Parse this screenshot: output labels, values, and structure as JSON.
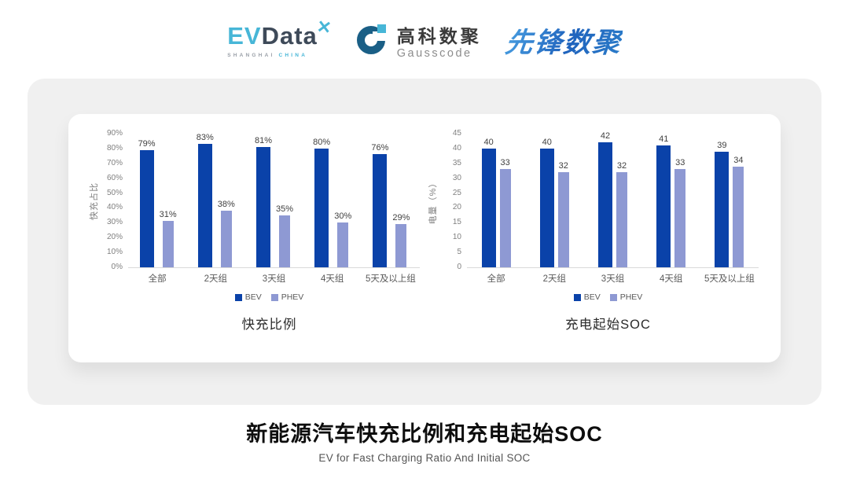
{
  "page": {
    "title": "新能源汽车快充比例和充电起始SOC",
    "subtitle": "EV for Fast Charging Ratio And Initial SOC"
  },
  "logos": {
    "evdata": {
      "ev": "EV",
      "data": "Data",
      "mark": "✕",
      "sub_left": "SHANGHAI",
      "sub_right": "CHINA"
    },
    "gausscode": {
      "cn": "高科数聚",
      "en": "Gausscode"
    },
    "xianfeng": {
      "text": "先锋数聚"
    }
  },
  "colors": {
    "bev": "#0a42a9",
    "phev": "#8e99d3",
    "baseline": "#d9d9d9",
    "panel_bg": "#f0f0f0",
    "evdata_cyan": "#47b6d7",
    "evdata_dark": "#3e4a59",
    "gauss_teal": "#1a5f86",
    "xianfeng_blue": "#2b7cc9"
  },
  "chart_data": [
    {
      "type": "bar",
      "title": "快充比例",
      "ylabel": "快充占比",
      "categories": [
        "全部",
        "2天组",
        "3天组",
        "4天组",
        "5天及以上组"
      ],
      "series": [
        {
          "name": "BEV",
          "values": [
            79,
            83,
            81,
            80,
            76
          ]
        },
        {
          "name": "PHEV",
          "values": [
            31,
            38,
            35,
            30,
            29
          ]
        }
      ],
      "value_suffix": "%",
      "tick_suffix": "%",
      "ylim": [
        0,
        90
      ],
      "ytick_step": 10,
      "grid": false,
      "legend_position": "bottom",
      "legend": [
        "BEV",
        "PHEV"
      ]
    },
    {
      "type": "bar",
      "title": "充电起始SOC",
      "ylabel": "电量（%）",
      "categories": [
        "全部",
        "2天组",
        "3天组",
        "4天组",
        "5天及以上组"
      ],
      "series": [
        {
          "name": "BEV",
          "values": [
            40,
            40,
            42,
            41,
            39
          ]
        },
        {
          "name": "PHEV",
          "values": [
            33,
            32,
            32,
            33,
            34
          ]
        }
      ],
      "value_suffix": "",
      "tick_suffix": "",
      "ylim": [
        0,
        45
      ],
      "ytick_step": 5,
      "grid": false,
      "legend_position": "bottom",
      "legend": [
        "BEV",
        "PHEV"
      ]
    }
  ]
}
